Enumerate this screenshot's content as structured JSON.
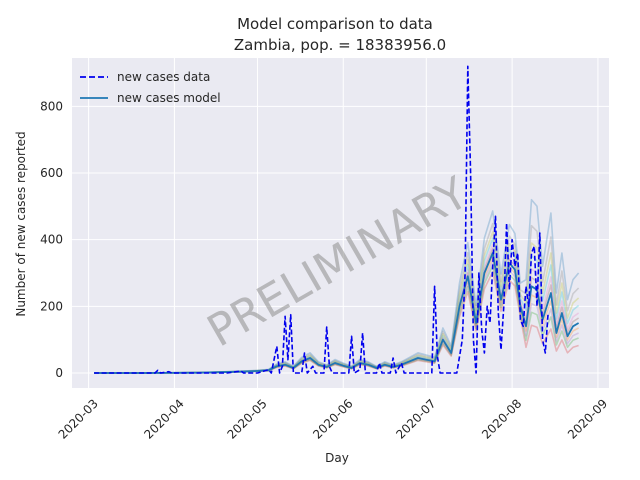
{
  "chart_data": {
    "type": "line",
    "title": "Model comparison to data",
    "subtitle": "Zambia, pop. = 18383956.0",
    "xlabel": "Day",
    "ylabel": "Number of new cases reported",
    "x_ticks": [
      "2020-03",
      "2020-04",
      "2020-05",
      "2020-06",
      "2020-07",
      "2020-08",
      "2020-09"
    ],
    "y_ticks": [
      0,
      200,
      400,
      600,
      800
    ],
    "xlim": [
      "2020-02-24",
      "2020-09-05"
    ],
    "ylim": [
      -45,
      945
    ],
    "grid": true,
    "background": "#eaeaf2",
    "legend_position": "top-left",
    "watermark": "PRELIMINARY",
    "series": [
      {
        "name": "new cases data",
        "style": "dashed",
        "color": "#0000ee",
        "points": [
          [
            "2020-03-03",
            0
          ],
          [
            "2020-03-25",
            0
          ],
          [
            "2020-03-26",
            8
          ],
          [
            "2020-03-27",
            0
          ],
          [
            "2020-03-30",
            4
          ],
          [
            "2020-03-31",
            0
          ],
          [
            "2020-04-20",
            0
          ],
          [
            "2020-04-25",
            6
          ],
          [
            "2020-04-26",
            0
          ],
          [
            "2020-05-01",
            0
          ],
          [
            "2020-05-05",
            10
          ],
          [
            "2020-05-06",
            0
          ],
          [
            "2020-05-08",
            80
          ],
          [
            "2020-05-09",
            0
          ],
          [
            "2020-05-10",
            20
          ],
          [
            "2020-05-11",
            170
          ],
          [
            "2020-05-12",
            40
          ],
          [
            "2020-05-13",
            175
          ],
          [
            "2020-05-14",
            0
          ],
          [
            "2020-05-17",
            0
          ],
          [
            "2020-05-18",
            60
          ],
          [
            "2020-05-19",
            0
          ],
          [
            "2020-05-21",
            20
          ],
          [
            "2020-05-22",
            0
          ],
          [
            "2020-05-25",
            0
          ],
          [
            "2020-05-26",
            138
          ],
          [
            "2020-05-27",
            20
          ],
          [
            "2020-05-28",
            0
          ],
          [
            "2020-06-02",
            0
          ],
          [
            "2020-06-03",
            0
          ],
          [
            "2020-06-04",
            110
          ],
          [
            "2020-06-05",
            0
          ],
          [
            "2020-06-07",
            10
          ],
          [
            "2020-06-08",
            120
          ],
          [
            "2020-06-09",
            0
          ],
          [
            "2020-06-13",
            0
          ],
          [
            "2020-06-14",
            30
          ],
          [
            "2020-06-15",
            0
          ],
          [
            "2020-06-18",
            0
          ],
          [
            "2020-06-19",
            45
          ],
          [
            "2020-06-20",
            0
          ],
          [
            "2020-06-22",
            30
          ],
          [
            "2020-06-23",
            0
          ],
          [
            "2020-06-28",
            0
          ],
          [
            "2020-07-01",
            0
          ],
          [
            "2020-07-03",
            0
          ],
          [
            "2020-07-04",
            260
          ],
          [
            "2020-07-05",
            50
          ],
          [
            "2020-07-06",
            0
          ],
          [
            "2020-07-12",
            0
          ],
          [
            "2020-07-14",
            100
          ],
          [
            "2020-07-15",
            300
          ],
          [
            "2020-07-16",
            920
          ],
          [
            "2020-07-17",
            600
          ],
          [
            "2020-07-18",
            100
          ],
          [
            "2020-07-19",
            0
          ],
          [
            "2020-07-20",
            300
          ],
          [
            "2020-07-21",
            130
          ],
          [
            "2020-07-22",
            60
          ],
          [
            "2020-07-23",
            200
          ],
          [
            "2020-07-24",
            150
          ],
          [
            "2020-07-25",
            320
          ],
          [
            "2020-07-26",
            470
          ],
          [
            "2020-07-27",
            180
          ],
          [
            "2020-07-28",
            70
          ],
          [
            "2020-07-29",
            200
          ],
          [
            "2020-07-30",
            450
          ],
          [
            "2020-07-31",
            250
          ],
          [
            "2020-08-01",
            400
          ],
          [
            "2020-08-02",
            320
          ],
          [
            "2020-08-03",
            360
          ],
          [
            "2020-08-04",
            160
          ],
          [
            "2020-08-05",
            140
          ],
          [
            "2020-08-06",
            260
          ],
          [
            "2020-08-07",
            200
          ],
          [
            "2020-08-08",
            360
          ],
          [
            "2020-08-09",
            380
          ],
          [
            "2020-08-10",
            200
          ],
          [
            "2020-08-11",
            420
          ],
          [
            "2020-08-12",
            100
          ],
          [
            "2020-08-13",
            60
          ],
          [
            "2020-08-14",
            180
          ]
        ]
      },
      {
        "name": "new cases model",
        "style": "solid",
        "color": "#1f77b4",
        "points": [
          [
            "2020-03-03",
            0
          ],
          [
            "2020-03-20",
            0
          ],
          [
            "2020-04-10",
            1
          ],
          [
            "2020-04-25",
            4
          ],
          [
            "2020-05-01",
            6
          ],
          [
            "2020-05-05",
            8
          ],
          [
            "2020-05-08",
            20
          ],
          [
            "2020-05-11",
            25
          ],
          [
            "2020-05-14",
            15
          ],
          [
            "2020-05-17",
            35
          ],
          [
            "2020-05-20",
            45
          ],
          [
            "2020-05-23",
            25
          ],
          [
            "2020-05-26",
            18
          ],
          [
            "2020-05-29",
            30
          ],
          [
            "2020-06-01",
            22
          ],
          [
            "2020-06-04",
            15
          ],
          [
            "2020-06-07",
            30
          ],
          [
            "2020-06-10",
            25
          ],
          [
            "2020-06-13",
            15
          ],
          [
            "2020-06-16",
            25
          ],
          [
            "2020-06-19",
            18
          ],
          [
            "2020-06-22",
            25
          ],
          [
            "2020-06-25",
            35
          ],
          [
            "2020-06-28",
            45
          ],
          [
            "2020-07-01",
            40
          ],
          [
            "2020-07-04",
            35
          ],
          [
            "2020-07-07",
            100
          ],
          [
            "2020-07-10",
            60
          ],
          [
            "2020-07-13",
            200
          ],
          [
            "2020-07-16",
            290
          ],
          [
            "2020-07-19",
            150
          ],
          [
            "2020-07-22",
            300
          ],
          [
            "2020-07-25",
            360
          ],
          [
            "2020-07-28",
            220
          ],
          [
            "2020-07-31",
            330
          ],
          [
            "2020-08-02",
            310
          ],
          [
            "2020-08-04",
            200
          ],
          [
            "2020-08-06",
            140
          ],
          [
            "2020-08-08",
            260
          ],
          [
            "2020-08-10",
            250
          ],
          [
            "2020-08-12",
            160
          ],
          [
            "2020-08-15",
            240
          ],
          [
            "2020-08-17",
            120
          ],
          [
            "2020-08-19",
            180
          ],
          [
            "2020-08-21",
            110
          ],
          [
            "2020-08-23",
            140
          ],
          [
            "2020-08-25",
            150
          ]
        ]
      }
    ]
  }
}
